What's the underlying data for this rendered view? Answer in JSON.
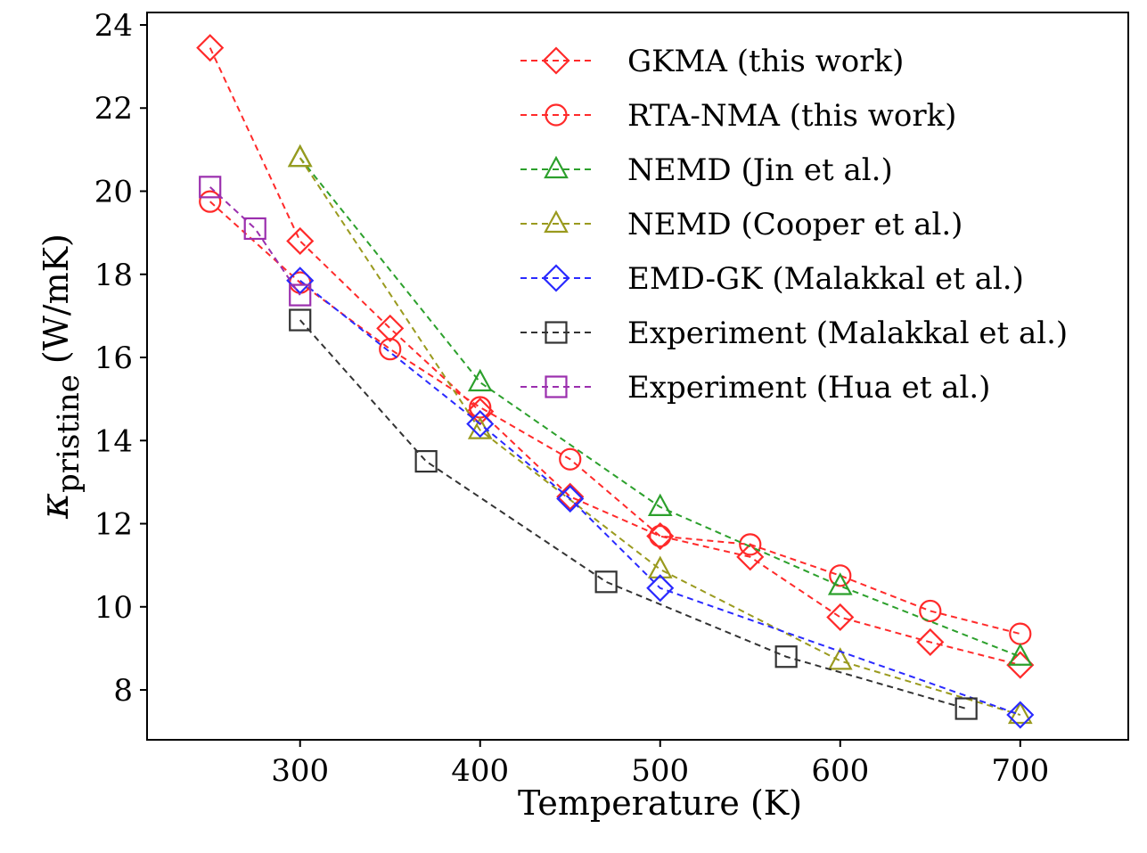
{
  "chart_data": {
    "type": "line",
    "xlabel": "Temperature (K)",
    "ylabel": {
      "main": "κ",
      "sub": "pristine",
      "units": "(W/mK)"
    },
    "xlim": [
      215,
      760
    ],
    "ylim": [
      6.8,
      24.3
    ],
    "xticks": [
      300,
      400,
      500,
      600,
      700
    ],
    "yticks": [
      8,
      10,
      12,
      14,
      16,
      18,
      20,
      22,
      24
    ],
    "grid": false,
    "legend_position": "top-right",
    "series": [
      {
        "name": "GKMA (this work)",
        "color": "#ff2a2a",
        "marker": "diamond",
        "x": [
          250,
          300,
          350,
          400,
          450,
          500,
          550,
          600,
          650,
          700
        ],
        "y": [
          23.45,
          18.8,
          16.7,
          14.7,
          12.65,
          11.7,
          11.2,
          9.75,
          9.15,
          8.6
        ]
      },
      {
        "name": "RTA-NMA (this work)",
        "color": "#ff2a2a",
        "marker": "circle",
        "x": [
          250,
          300,
          350,
          400,
          450,
          500,
          550,
          600,
          650,
          700
        ],
        "y": [
          19.75,
          17.8,
          16.2,
          14.8,
          13.55,
          11.7,
          11.5,
          10.75,
          9.9,
          9.35
        ]
      },
      {
        "name": "NEMD (Jin et al.)",
        "color": "#2ca02c",
        "marker": "triangle",
        "x": [
          300,
          400,
          500,
          600,
          700
        ],
        "y": [
          20.8,
          15.4,
          12.4,
          10.5,
          8.8
        ]
      },
      {
        "name": "NEMD (Cooper et al.)",
        "color": "#9a9a1e",
        "marker": "triangle",
        "x": [
          300,
          400,
          500,
          600,
          700
        ],
        "y": [
          20.8,
          14.25,
          10.9,
          8.7,
          7.4
        ]
      },
      {
        "name": "EMD-GK (Malakkal et al.)",
        "color": "#2a2aff",
        "marker": "diamond",
        "x": [
          300,
          400,
          450,
          500,
          700
        ],
        "y": [
          17.85,
          14.4,
          12.6,
          10.45,
          7.4
        ]
      },
      {
        "name": "Experiment (Malakkal et al.)",
        "color": "#333333",
        "marker": "square",
        "x": [
          300,
          370,
          470,
          570,
          670
        ],
        "y": [
          16.9,
          13.5,
          10.6,
          8.8,
          7.55
        ]
      },
      {
        "name": "Experiment (Hua et al.)",
        "color": "#9b2fae",
        "marker": "square",
        "x": [
          250,
          275,
          300
        ],
        "y": [
          20.1,
          19.1,
          17.5
        ]
      }
    ]
  }
}
